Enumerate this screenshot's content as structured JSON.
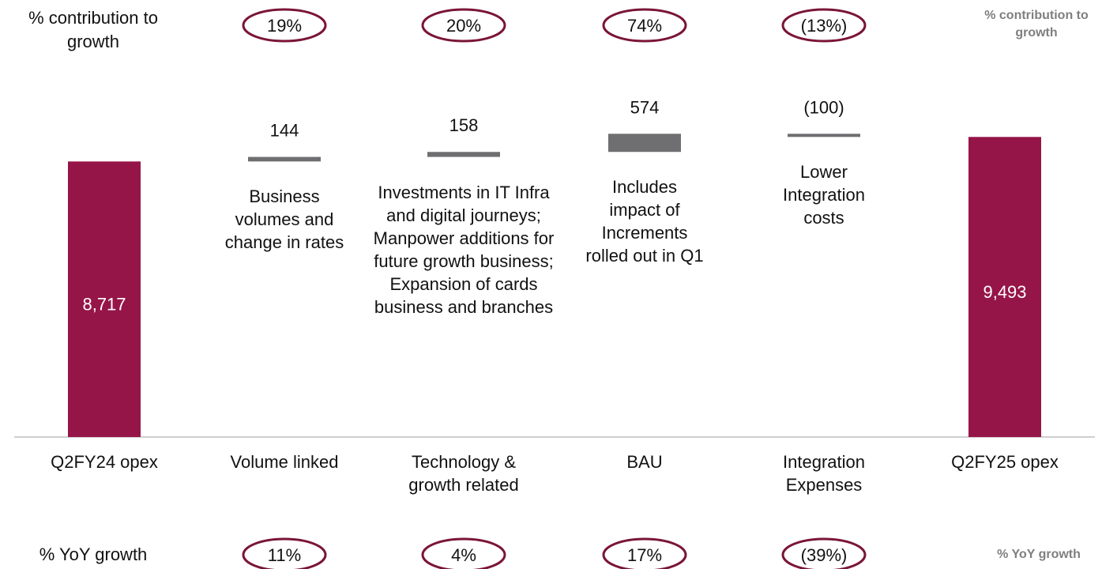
{
  "chart_data": {
    "type": "waterfall",
    "categories": [
      "Q2FY24 opex",
      "Volume linked",
      "Technology & growth related",
      "BAU",
      "Integration Expenses",
      "Q2FY25 opex"
    ],
    "values": [
      8717,
      144,
      158,
      574,
      -100,
      9493
    ],
    "value_labels": [
      "8,717",
      "144",
      "158",
      "574",
      "(100)",
      "9,493"
    ],
    "totals": [
      true,
      false,
      false,
      false,
      false,
      true
    ],
    "total_color": "#961548",
    "delta_color": "#6f6f72",
    "ylim": [
      0,
      10000
    ],
    "notes": [
      null,
      "Business volumes and change in rates",
      "Investments in IT Infra and digital journeys; Manpower additions for future growth business; Expansion of cards business and branches",
      "Includes impact of Increments rolled out in Q1",
      "Lower Integration costs",
      null
    ],
    "contribution": {
      "label": "% contribution to growth",
      "values": [
        null,
        19,
        20,
        74,
        -13,
        null
      ],
      "value_labels": [
        null,
        "19%",
        "20%",
        "74%",
        "(13%)",
        null
      ]
    },
    "yoy": {
      "label": "% YoY growth",
      "values": [
        null,
        11,
        4,
        17,
        -39,
        null
      ],
      "value_labels": [
        null,
        "11%",
        "4%",
        "17%",
        "(39%)",
        null
      ]
    }
  }
}
